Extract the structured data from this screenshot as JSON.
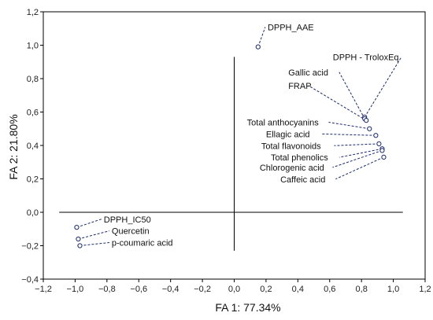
{
  "chart_data": {
    "type": "scatter",
    "xlabel": "FA 1: 77.34%",
    "ylabel": "FA 2: 21.80%",
    "xlim": [
      -1.2,
      1.2
    ],
    "ylim": [
      -0.4,
      1.2
    ],
    "xticks": [
      -1.2,
      -1.0,
      -0.8,
      -0.6,
      -0.4,
      -0.2,
      0.0,
      0.2,
      0.4,
      0.6,
      0.8,
      1.0,
      1.2
    ],
    "yticks": [
      -0.4,
      -0.2,
      0.0,
      0.2,
      0.4,
      0.6,
      0.8,
      1.0,
      1.2
    ],
    "xtick_labels": [
      "-1,2",
      "-1,0",
      "-0,8",
      "-0,6",
      "-0,4",
      "-0,2",
      "0,0",
      "0,2",
      "0,4",
      "0,6",
      "0,8",
      "1,0",
      "1,2"
    ],
    "ytick_labels": [
      "-0,4",
      "-0,2",
      "0,0",
      "0,2",
      "0,4",
      "0,6",
      "0,8",
      "1,0",
      "1,2"
    ],
    "grid": false,
    "reference_lines": {
      "horizontal_y": 0.0,
      "vertical_x": 0.0
    },
    "points": [
      {
        "name": "DPPH_AAE",
        "x": 0.15,
        "y": 0.99,
        "label_x": 0.21,
        "label_y": 1.09
      },
      {
        "name": "DPPH - TroloxEq",
        "x": 0.82,
        "y": 0.57,
        "label_x": 0.62,
        "label_y": 0.91
      },
      {
        "name": "Gallic acid",
        "x": 0.82,
        "y": 0.56,
        "label_x": 0.34,
        "label_y": 0.82
      },
      {
        "name": "FRAP",
        "x": 0.83,
        "y": 0.55,
        "label_x": 0.34,
        "label_y": 0.74
      },
      {
        "name": "Total anthocyanins",
        "x": 0.85,
        "y": 0.5,
        "label_x": 0.08,
        "label_y": 0.52
      },
      {
        "name": "Ellagic acid",
        "x": 0.89,
        "y": 0.46,
        "label_x": 0.2,
        "label_y": 0.45
      },
      {
        "name": "Total flavonoids",
        "x": 0.91,
        "y": 0.41,
        "label_x": 0.17,
        "label_y": 0.38
      },
      {
        "name": "Total phenolics",
        "x": 0.93,
        "y": 0.38,
        "label_x": 0.23,
        "label_y": 0.31
      },
      {
        "name": "Chlorogenic acid",
        "x": 0.93,
        "y": 0.37,
        "label_x": 0.16,
        "label_y": 0.25
      },
      {
        "name": "Caffeic acid",
        "x": 0.94,
        "y": 0.33,
        "label_x": 0.29,
        "label_y": 0.18
      },
      {
        "name": "DPPH_IC50",
        "x": -0.99,
        "y": -0.09,
        "label_x": -0.82,
        "label_y": -0.06
      },
      {
        "name": "Quercetin",
        "x": -0.98,
        "y": -0.16,
        "label_x": -0.77,
        "label_y": -0.13
      },
      {
        "name": "p-coumaric acid",
        "x": -0.97,
        "y": -0.2,
        "label_x": -0.77,
        "label_y": -0.2
      }
    ]
  }
}
